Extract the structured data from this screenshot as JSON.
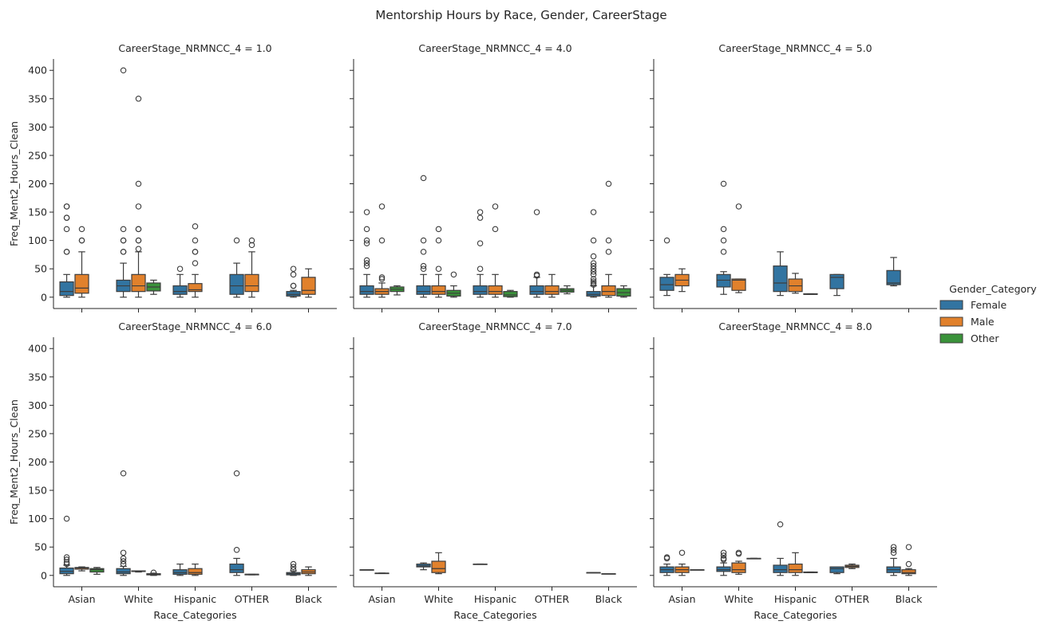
{
  "chart_data": {
    "type": "box",
    "title": "Mentorship Hours by Race, Gender, CareerStage",
    "xlabel": "Race_Categories",
    "ylabel": "Freq_Ment2_Hours_Clean",
    "ylim": [
      -20,
      420
    ],
    "yticks": [
      0,
      50,
      100,
      150,
      200,
      250,
      300,
      350,
      400
    ],
    "categories": [
      "Asian",
      "White",
      "Hispanic",
      "OTHER",
      "Black"
    ],
    "legend": {
      "title": "Gender_Category",
      "placement": "right",
      "entries": [
        {
          "name": "Female",
          "color": "#3274a1"
        },
        {
          "name": "Male",
          "color": "#e1812c"
        },
        {
          "name": "Other",
          "color": "#3a923a"
        }
      ]
    },
    "panels": [
      {
        "title": "CareerStage_NRMNCC_4 = 1.0",
        "boxes": [
          {
            "category": "Asian",
            "hue": "Female",
            "min": 0,
            "q1": 3,
            "median": 10,
            "q3": 27,
            "max": 40,
            "fliers": [
              80,
              80,
              120,
              140,
              140,
              160,
              160
            ]
          },
          {
            "category": "Asian",
            "hue": "Male",
            "min": 0,
            "q1": 7,
            "median": 16,
            "q3": 40,
            "max": 80,
            "fliers": [
              100,
              100,
              120
            ]
          },
          {
            "category": "White",
            "hue": "Female",
            "min": 0,
            "q1": 10,
            "median": 20,
            "q3": 30,
            "max": 60,
            "fliers": [
              80,
              80,
              100,
              100,
              120,
              400
            ]
          },
          {
            "category": "White",
            "hue": "Male",
            "min": 0,
            "q1": 10,
            "median": 20,
            "q3": 40,
            "max": 80,
            "fliers": [
              85,
              100,
              100,
              120,
              120,
              160,
              200,
              350
            ]
          },
          {
            "category": "White",
            "hue": "Other",
            "min": 5,
            "q1": 11,
            "median": 18,
            "q3": 25,
            "max": 30,
            "fliers": []
          },
          {
            "category": "Hispanic",
            "hue": "Female",
            "min": 0,
            "q1": 5,
            "median": 10,
            "q3": 20,
            "max": 40,
            "fliers": [
              50
            ]
          },
          {
            "category": "Hispanic",
            "hue": "Male",
            "min": 0,
            "q1": 10,
            "median": 13,
            "q3": 24,
            "max": 40,
            "fliers": [
              60,
              80,
              80,
              100,
              125
            ]
          },
          {
            "category": "OTHER",
            "hue": "Female",
            "min": 0,
            "q1": 5,
            "median": 20,
            "q3": 40,
            "max": 60,
            "fliers": [
              100
            ]
          },
          {
            "category": "OTHER",
            "hue": "Male",
            "min": 0,
            "q1": 10,
            "median": 20,
            "q3": 40,
            "max": 80,
            "fliers": [
              92,
              100
            ]
          },
          {
            "category": "Black",
            "hue": "Female",
            "min": 0,
            "q1": 2,
            "median": 5,
            "q3": 10,
            "max": 12,
            "fliers": [
              20,
              20,
              40,
              50
            ]
          },
          {
            "category": "Black",
            "hue": "Male",
            "min": 0,
            "q1": 5,
            "median": 12,
            "q3": 35,
            "max": 50,
            "fliers": []
          }
        ]
      },
      {
        "title": "CareerStage_NRMNCC_4 = 4.0",
        "boxes": [
          {
            "category": "Asian",
            "hue": "Female",
            "min": 0,
            "q1": 5,
            "median": 10,
            "q3": 20,
            "max": 40,
            "fliers": [
              55,
              60,
              65,
              95,
              100,
              120,
              150
            ]
          },
          {
            "category": "Asian",
            "hue": "Male",
            "min": 0,
            "q1": 5,
            "median": 10,
            "q3": 15,
            "max": 25,
            "fliers": [
              32,
              35,
              100,
              160
            ]
          },
          {
            "category": "Asian",
            "hue": "Other",
            "min": 4,
            "q1": 10,
            "median": 14,
            "q3": 18,
            "max": 20,
            "fliers": []
          },
          {
            "category": "White",
            "hue": "Female",
            "min": 0,
            "q1": 5,
            "median": 10,
            "q3": 20,
            "max": 40,
            "fliers": [
              50,
              55,
              80,
              100,
              210
            ]
          },
          {
            "category": "White",
            "hue": "Male",
            "min": 0,
            "q1": 5,
            "median": 10,
            "q3": 20,
            "max": 40,
            "fliers": [
              50,
              100,
              120
            ]
          },
          {
            "category": "White",
            "hue": "Other",
            "min": 0,
            "q1": 2,
            "median": 7,
            "q3": 12,
            "max": 20,
            "fliers": [
              40
            ]
          },
          {
            "category": "Hispanic",
            "hue": "Female",
            "min": 0,
            "q1": 5,
            "median": 10,
            "q3": 20,
            "max": 40,
            "fliers": [
              50,
              95,
              140,
              150
            ]
          },
          {
            "category": "Hispanic",
            "hue": "Male",
            "min": 0,
            "q1": 5,
            "median": 10,
            "q3": 20,
            "max": 40,
            "fliers": [
              120,
              160
            ]
          },
          {
            "category": "Hispanic",
            "hue": "Other",
            "min": 0,
            "q1": 1,
            "median": 4,
            "q3": 10,
            "max": 12,
            "fliers": []
          },
          {
            "category": "OTHER",
            "hue": "Female",
            "min": 0,
            "q1": 5,
            "median": 10,
            "q3": 20,
            "max": 35,
            "fliers": [
              38,
              40,
              150
            ]
          },
          {
            "category": "OTHER",
            "hue": "Male",
            "min": 0,
            "q1": 5,
            "median": 10,
            "q3": 20,
            "max": 40,
            "fliers": []
          },
          {
            "category": "OTHER",
            "hue": "Other",
            "min": 6,
            "q1": 9,
            "median": 12,
            "q3": 15,
            "max": 20,
            "fliers": []
          },
          {
            "category": "Black",
            "hue": "Female",
            "min": 0,
            "q1": 2,
            "median": 5,
            "q3": 10,
            "max": 20,
            "fliers": [
              22,
              25,
              28,
              32,
              40,
              45,
              50,
              55,
              60,
              72,
              100,
              150
            ]
          },
          {
            "category": "Black",
            "hue": "Male",
            "min": 0,
            "q1": 3,
            "median": 10,
            "q3": 20,
            "max": 40,
            "fliers": [
              80,
              100,
              200
            ]
          },
          {
            "category": "Black",
            "hue": "Other",
            "min": 0,
            "q1": 2,
            "median": 8,
            "q3": 15,
            "max": 20,
            "fliers": []
          }
        ]
      },
      {
        "title": "CareerStage_NRMNCC_4 = 5.0",
        "boxes": [
          {
            "category": "Asian",
            "hue": "Female",
            "min": 3,
            "q1": 12,
            "median": 22,
            "q3": 35,
            "max": 40,
            "fliers": [
              100
            ]
          },
          {
            "category": "Asian",
            "hue": "Male",
            "min": 10,
            "q1": 20,
            "median": 30,
            "q3": 40,
            "max": 50,
            "fliers": []
          },
          {
            "category": "White",
            "hue": "Female",
            "min": 5,
            "q1": 18,
            "median": 30,
            "q3": 40,
            "max": 45,
            "fliers": [
              80,
              100,
              120,
              200
            ]
          },
          {
            "category": "White",
            "hue": "Male",
            "min": 8,
            "q1": 12,
            "median": 30,
            "q3": 32,
            "max": 32,
            "fliers": [
              160
            ]
          },
          {
            "category": "Hispanic",
            "hue": "Female",
            "min": 3,
            "q1": 10,
            "median": 25,
            "q3": 55,
            "max": 80,
            "fliers": []
          },
          {
            "category": "Hispanic",
            "hue": "Male",
            "min": 7,
            "q1": 10,
            "median": 20,
            "q3": 32,
            "max": 42,
            "fliers": []
          },
          {
            "category": "Hispanic",
            "hue": "Other",
            "min": 5,
            "q1": 5,
            "median": 5,
            "q3": 6,
            "max": 6,
            "fliers": []
          },
          {
            "category": "OTHER",
            "hue": "Female",
            "min": 3,
            "q1": 15,
            "median": 35,
            "q3": 40,
            "max": 40,
            "fliers": []
          },
          {
            "category": "Black",
            "hue": "Female",
            "min": 20,
            "q1": 22,
            "median": 25,
            "q3": 47,
            "max": 70,
            "fliers": []
          }
        ]
      },
      {
        "title": "CareerStage_NRMNCC_4 = 6.0",
        "boxes": [
          {
            "category": "Asian",
            "hue": "Female",
            "min": 0,
            "q1": 3,
            "median": 7,
            "q3": 13,
            "max": 18,
            "fliers": [
              20,
              23,
              28,
              32,
              100
            ]
          },
          {
            "category": "Asian",
            "hue": "Male",
            "min": 8,
            "q1": 11,
            "median": 13,
            "q3": 14,
            "max": 15,
            "fliers": []
          },
          {
            "category": "Asian",
            "hue": "Other",
            "min": 2,
            "q1": 6,
            "median": 10,
            "q3": 12,
            "max": 14,
            "fliers": []
          },
          {
            "category": "White",
            "hue": "Female",
            "min": 0,
            "q1": 3,
            "median": 6,
            "q3": 12,
            "max": 16,
            "fliers": [
              20,
              25,
              30,
              40,
              180
            ]
          },
          {
            "category": "White",
            "hue": "Male",
            "min": 6,
            "q1": 7,
            "median": 7,
            "q3": 8,
            "max": 8,
            "fliers": []
          },
          {
            "category": "White",
            "hue": "Other",
            "min": 0,
            "q1": 1,
            "median": 2,
            "q3": 3,
            "max": 4,
            "fliers": [
              5
            ]
          },
          {
            "category": "Hispanic",
            "hue": "Female",
            "min": 0,
            "q1": 2,
            "median": 5,
            "q3": 10,
            "max": 20,
            "fliers": []
          },
          {
            "category": "Hispanic",
            "hue": "Male",
            "min": 0,
            "q1": 2,
            "median": 5,
            "q3": 12,
            "max": 20,
            "fliers": []
          },
          {
            "category": "OTHER",
            "hue": "Female",
            "min": 0,
            "q1": 5,
            "median": 10,
            "q3": 20,
            "max": 30,
            "fliers": [
              45,
              180
            ]
          },
          {
            "category": "OTHER",
            "hue": "Male",
            "min": 1,
            "q1": 1,
            "median": 2,
            "q3": 2,
            "max": 2,
            "fliers": []
          },
          {
            "category": "Black",
            "hue": "Female",
            "min": 0,
            "q1": 1,
            "median": 3,
            "q3": 5,
            "max": 8,
            "fliers": [
              10,
              15,
              20
            ]
          },
          {
            "category": "Black",
            "hue": "Male",
            "min": 0,
            "q1": 3,
            "median": 6,
            "q3": 10,
            "max": 15,
            "fliers": []
          }
        ]
      },
      {
        "title": "CareerStage_NRMNCC_4 = 7.0",
        "boxes": [
          {
            "category": "Asian",
            "hue": "Female",
            "min": 10,
            "q1": 10,
            "median": 10,
            "q3": 10,
            "max": 10,
            "fliers": []
          },
          {
            "category": "Asian",
            "hue": "Male",
            "min": 4,
            "q1": 4,
            "median": 4,
            "q3": 4,
            "max": 4,
            "fliers": []
          },
          {
            "category": "White",
            "hue": "Female",
            "min": 10,
            "q1": 15,
            "median": 17,
            "q3": 20,
            "max": 22,
            "fliers": []
          },
          {
            "category": "White",
            "hue": "Male",
            "min": 3,
            "q1": 5,
            "median": 12,
            "q3": 25,
            "max": 40,
            "fliers": []
          },
          {
            "category": "Hispanic",
            "hue": "Female",
            "min": 20,
            "q1": 20,
            "median": 20,
            "q3": 20,
            "max": 20,
            "fliers": []
          },
          {
            "category": "Black",
            "hue": "Female",
            "min": 5,
            "q1": 5,
            "median": 5,
            "q3": 5,
            "max": 5,
            "fliers": []
          },
          {
            "category": "Black",
            "hue": "Male",
            "min": 3,
            "q1": 3,
            "median": 3,
            "q3": 3,
            "max": 3,
            "fliers": []
          }
        ]
      },
      {
        "title": "CareerStage_NRMNCC_4 = 8.0",
        "boxes": [
          {
            "category": "Asian",
            "hue": "Female",
            "min": 0,
            "q1": 5,
            "median": 10,
            "q3": 15,
            "max": 20,
            "fliers": [
              30,
              32
            ]
          },
          {
            "category": "Asian",
            "hue": "Male",
            "min": 0,
            "q1": 5,
            "median": 10,
            "q3": 15,
            "max": 20,
            "fliers": [
              40
            ]
          },
          {
            "category": "Asian",
            "hue": "Other",
            "min": 10,
            "q1": 10,
            "median": 10,
            "q3": 10,
            "max": 10,
            "fliers": []
          },
          {
            "category": "White",
            "hue": "Female",
            "min": 0,
            "q1": 7,
            "median": 10,
            "q3": 15,
            "max": 22,
            "fliers": [
              28,
              30,
              35,
              40
            ]
          },
          {
            "category": "White",
            "hue": "Male",
            "min": 2,
            "q1": 5,
            "median": 10,
            "q3": 22,
            "max": 25,
            "fliers": [
              38,
              40
            ]
          },
          {
            "category": "White",
            "hue": "Other",
            "min": 30,
            "q1": 30,
            "median": 30,
            "q3": 30,
            "max": 30,
            "fliers": []
          },
          {
            "category": "Hispanic",
            "hue": "Female",
            "min": 0,
            "q1": 5,
            "median": 10,
            "q3": 18,
            "max": 30,
            "fliers": [
              90
            ]
          },
          {
            "category": "Hispanic",
            "hue": "Male",
            "min": 0,
            "q1": 5,
            "median": 10,
            "q3": 20,
            "max": 40,
            "fliers": []
          },
          {
            "category": "Hispanic",
            "hue": "Other",
            "min": 5,
            "q1": 5,
            "median": 5,
            "q3": 6,
            "max": 6,
            "fliers": []
          },
          {
            "category": "OTHER",
            "hue": "Female",
            "min": 3,
            "q1": 5,
            "median": 12,
            "q3": 15,
            "max": 15,
            "fliers": []
          },
          {
            "category": "OTHER",
            "hue": "Male",
            "min": 12,
            "q1": 14,
            "median": 16,
            "q3": 18,
            "max": 20,
            "fliers": []
          },
          {
            "category": "Black",
            "hue": "Female",
            "min": 0,
            "q1": 5,
            "median": 10,
            "q3": 15,
            "max": 30,
            "fliers": [
              40,
              45,
              50
            ]
          },
          {
            "category": "Black",
            "hue": "Male",
            "min": 0,
            "q1": 3,
            "median": 5,
            "q3": 10,
            "max": 12,
            "fliers": [
              20,
              50
            ]
          }
        ]
      }
    ]
  }
}
